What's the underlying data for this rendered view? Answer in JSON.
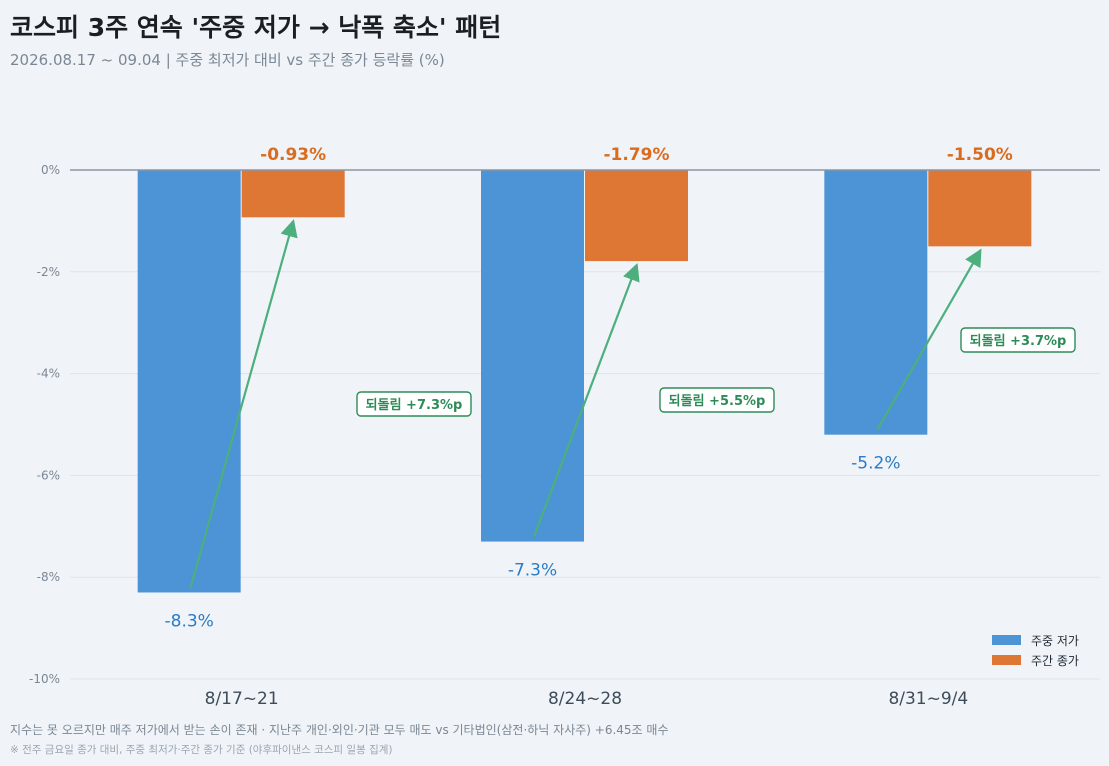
{
  "header": {
    "title": "코스피 3주 연속 '주중 저가 → 낙폭 축소' 패턴",
    "subtitle": "2026.08.17 ~ 09.04 | 주중 최저가 대비 vs 주간 종가 등락률 (%)"
  },
  "footer": {
    "note1": "지수는 못 오르지만 매주 저가에서 받는 손이 존재 · 지난주 개인·외인·기관 모두 매도 vs 기타법인(삼전·하닉 자사주) +6.45조 매수",
    "note2": "※ 전주 금요일 종가 대비, 주중 최저가·주간 종가 기준 (야후파이낸스 코스피 일봉 집계)"
  },
  "colors": {
    "low": "#4d94d6",
    "close": "#df7734",
    "arrow": "#4caf7d",
    "low_label": "#2b7bc4",
    "close_label": "#d96c1f",
    "annotation": "#2e8b57"
  },
  "chart_data": {
    "type": "bar",
    "categories": [
      "8/17~21",
      "8/24~28",
      "8/31~9/4"
    ],
    "series": [
      {
        "name": "주중 저가",
        "values": [
          -8.3,
          -7.3,
          -5.2
        ],
        "labels": [
          "-8.3%",
          "-7.3%",
          "-5.2%"
        ]
      },
      {
        "name": "주간 종가",
        "values": [
          -0.93,
          -1.79,
          -1.5
        ],
        "labels": [
          "-0.93%",
          "-1.79%",
          "-1.50%"
        ]
      }
    ],
    "ylim": [
      -10,
      0
    ],
    "yticks": [
      0,
      -2,
      -4,
      -6,
      -8,
      -10
    ],
    "ytick_labels": [
      "0%",
      "-2%",
      "-4%",
      "-6%",
      "-8%",
      "-10%"
    ],
    "annotations": [
      "되돌림 +7.3%p",
      "되돌림 +5.5%p",
      "되돌림 +3.7%p"
    ],
    "legend": "bottom-right",
    "grid": true
  }
}
